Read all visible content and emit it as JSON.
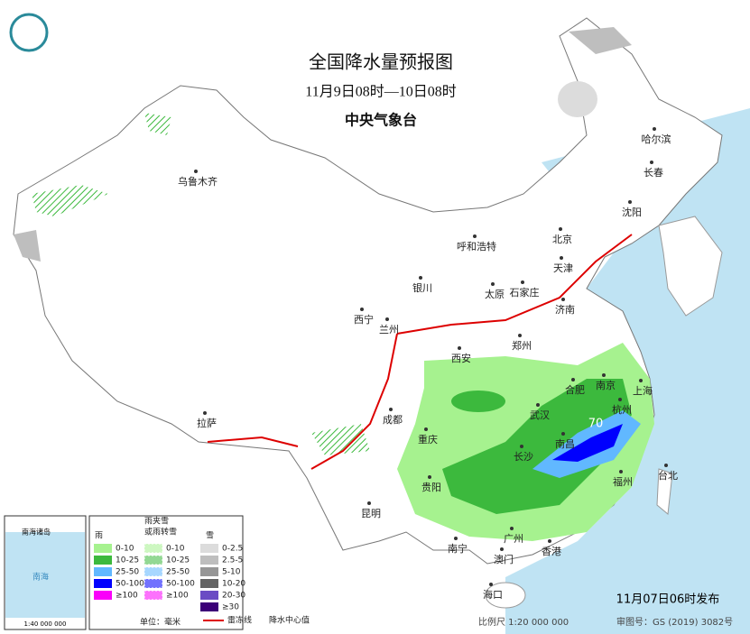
{
  "header": {
    "title": "全国降水量预报图",
    "subtitle": "11月9日08时—10日08时",
    "agency": "中央气象台"
  },
  "cities": [
    "乌鲁木齐",
    "哈尔滨",
    "长春",
    "沈阳",
    "北京",
    "天津",
    "呼和浩特",
    "石家庄",
    "太原",
    "银川",
    "济南",
    "西宁",
    "兰州",
    "郑州",
    "西安",
    "合肥",
    "南京",
    "上海",
    "武汉",
    "杭州",
    "成都",
    "拉萨",
    "重庆",
    "南昌",
    "长沙",
    "福州",
    "台北",
    "贵阳",
    "昆明",
    "广州",
    "南宁",
    "香港",
    "澳门",
    "海口"
  ],
  "max_center": 70,
  "legend": {
    "rain": {
      "title": "雨",
      "items": [
        {
          "label": "0-10",
          "color": "#a6f28f"
        },
        {
          "label": "10-25",
          "color": "#3cb93d"
        },
        {
          "label": "25-50",
          "color": "#61b8ff"
        },
        {
          "label": "50-100",
          "color": "#0000fe"
        },
        {
          "label": "≥100",
          "color": "#fa00fa"
        }
      ]
    },
    "mixed": {
      "title_lines": [
        "雨夹雪",
        "或雨转雪"
      ],
      "items": [
        {
          "label": "0-10",
          "color": "#a6f28f"
        },
        {
          "label": "10-25",
          "color": "#3cb93d"
        },
        {
          "label": "25-50",
          "color": "#61b8ff"
        },
        {
          "label": "50-100",
          "color": "#0000fe"
        },
        {
          "label": "≥100",
          "color": "#fa00fa"
        }
      ]
    },
    "snow": {
      "title": "雪",
      "items": [
        {
          "label": "0-2.5",
          "color": "#dcdcdc"
        },
        {
          "label": "2.5-5",
          "color": "#bebebe"
        },
        {
          "label": "5-10",
          "color": "#969696"
        },
        {
          "label": "10-20",
          "color": "#646464"
        },
        {
          "label": "20-30",
          "color": "#6a4cc4"
        },
        {
          "label": "≥30",
          "color": "#3c0078"
        }
      ]
    },
    "unit": "单位：毫米",
    "symbols": [
      "雷冻线",
      "降水中心值"
    ]
  },
  "inset": {
    "title": "南海诸岛",
    "sea": "南海",
    "scale": "1:40 000 000"
  },
  "footer": {
    "issued": "11月07日06时发布",
    "scale": "比例尺 1:20 000 000",
    "review": "审图号：GS (2019) 3082号"
  }
}
